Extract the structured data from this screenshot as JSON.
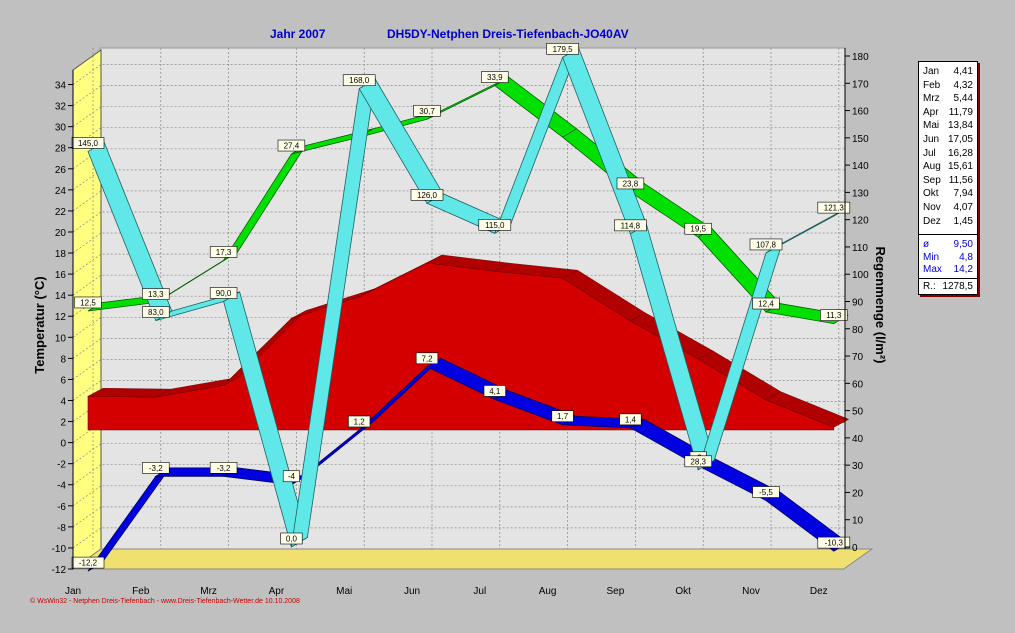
{
  "header": {
    "year_label": "Jahr  2007",
    "station": "DH5DY-Netphen Dreis-Tiefenbach-JO40AV"
  },
  "footer": "© WsWin32 - Netphen Dreis-Tiefenbach - www.Dreis-Tiefenbach-Wetter.de  10.10.2008",
  "colors": {
    "background": "#c0c0c0",
    "rain": "#d40000",
    "max_temp": "#00e000",
    "min_temp": "#0000e0",
    "series_line": "#60e8e8",
    "left_wall": "#ffff80",
    "floor": "#f0e070",
    "header_text": "#0000c8"
  },
  "panel": {
    "months": [
      {
        "label": "Jan",
        "value": "4,41"
      },
      {
        "label": "Feb",
        "value": "4,32"
      },
      {
        "label": "Mrz",
        "value": "5,44"
      },
      {
        "label": "Apr",
        "value": "11,79"
      },
      {
        "label": "Mai",
        "value": "13,84"
      },
      {
        "label": "Jun",
        "value": "17,05"
      },
      {
        "label": "Jul",
        "value": "16,28"
      },
      {
        "label": "Aug",
        "value": "15,61"
      },
      {
        "label": "Sep",
        "value": "11,56"
      },
      {
        "label": "Okt",
        "value": "7,94"
      },
      {
        "label": "Nov",
        "value": "4,07"
      },
      {
        "label": "Dez",
        "value": "1,45"
      }
    ],
    "stats": [
      {
        "label": "ø",
        "value": "9,50"
      },
      {
        "label": "Min",
        "value": "4,8"
      },
      {
        "label": "Max",
        "value": "14,2"
      }
    ],
    "rain_total": {
      "label": "R.:",
      "value": "1278,5"
    }
  },
  "chart_data": {
    "type": "line",
    "categories": [
      "Jan",
      "Feb",
      "Mrz",
      "Apr",
      "Mai",
      "Jun",
      "Jul",
      "Aug",
      "Sep",
      "Okt",
      "Nov",
      "Dez"
    ],
    "ylabel": "Temperatur  (°C)",
    "y2label": "Regenmenge  (l/m²)",
    "ylim": [
      -12,
      35
    ],
    "yticks": [
      -12,
      -10,
      -8,
      -6,
      -4,
      -2,
      0,
      2,
      4,
      6,
      8,
      10,
      12,
      14,
      16,
      18,
      20,
      22,
      24,
      26,
      28,
      30,
      32,
      34
    ],
    "y2lim": [
      0,
      180
    ],
    "y2ticks": [
      0,
      10,
      20,
      30,
      40,
      50,
      60,
      70,
      80,
      90,
      100,
      110,
      120,
      130,
      140,
      150,
      160,
      170,
      180
    ],
    "grid": true,
    "series": [
      {
        "kind": "area",
        "axis": "left",
        "values": [
          4.41,
          4.32,
          5.44,
          11.79,
          13.84,
          17.05,
          16.28,
          15.61,
          11.56,
          7.94,
          4.07,
          1.45
        ]
      },
      {
        "kind": "ribbon",
        "axis": "left",
        "values": [
          12.5,
          13.3,
          17.3,
          27.4,
          29.0,
          30.7,
          33.9,
          29.0,
          23.8,
          19.5,
          12.4,
          11.3
        ],
        "labels": [
          "12,5",
          "13,3",
          "17,3",
          "27,4",
          "",
          "30,7",
          "33,9",
          "",
          "23,8",
          "19,5",
          "12,4",
          "11,3"
        ]
      },
      {
        "kind": "ribbon",
        "axis": "left",
        "values": [
          -12.2,
          -3.2,
          -3.2,
          -4.0,
          1.2,
          7.2,
          4.1,
          1.7,
          1.4,
          -2.2,
          -5.5,
          -10.3
        ],
        "labels": [
          "-12,2",
          "-3,2",
          "-3,2",
          "-4",
          "1,2",
          "7,2",
          "4,1",
          "1,7",
          "1,4",
          "-2",
          "-5,5",
          "-10,3"
        ]
      },
      {
        "kind": "ribbon",
        "axis": "right",
        "values": [
          145.0,
          83.0,
          90.0,
          0.0,
          168.0,
          126.0,
          115.0,
          179.5,
          114.8,
          28.3,
          107.8,
          121.3
        ],
        "labels": [
          "145,0",
          "83,0",
          "90,0",
          "0,0",
          "168,0",
          "126,0",
          "115,0",
          "179,5",
          "114,8",
          "28,3",
          "107,8",
          "121,3"
        ]
      }
    ]
  }
}
